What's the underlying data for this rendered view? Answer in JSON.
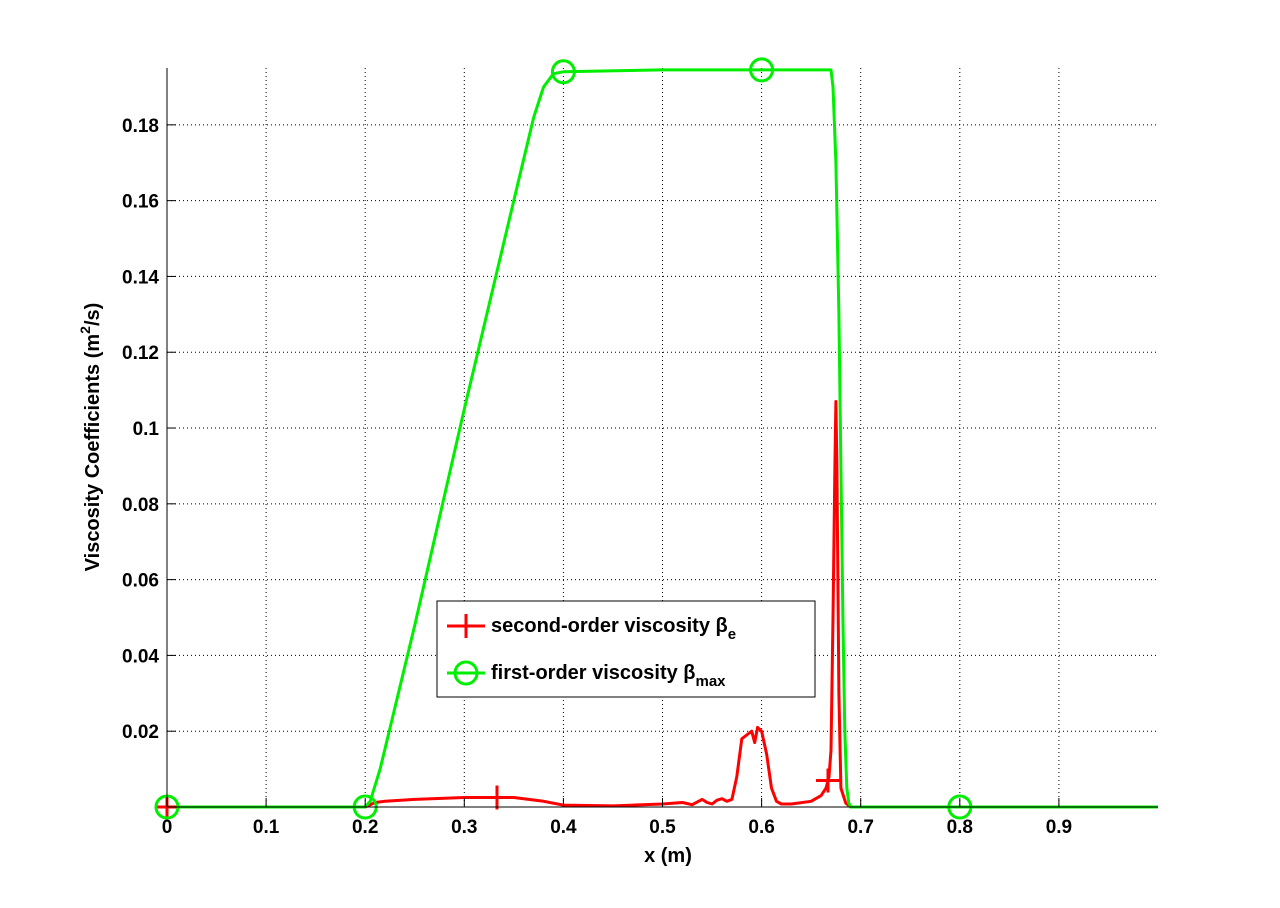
{
  "chart_data": {
    "type": "line",
    "xlabel": "x (m)",
    "ylabel": "Viscosity Coefficients (m",
    "ylabel_sup": "2",
    "ylabel_tail": "/s)",
    "xlim": [
      0,
      1
    ],
    "ylim": [
      0,
      0.195
    ],
    "grid": true,
    "legend_position": "bottom-center",
    "x_ticks": [
      0,
      0.1,
      0.2,
      0.3,
      0.4,
      0.5,
      0.6,
      0.7,
      0.8,
      0.9
    ],
    "x_tick_labels": [
      "0",
      "0.1",
      "0.2",
      "0.3",
      "0.4",
      "0.5",
      "0.6",
      "0.7",
      "0.8",
      "0.9"
    ],
    "y_ticks": [
      0.02,
      0.04,
      0.06,
      0.08,
      0.1,
      0.12,
      0.14,
      0.16,
      0.18
    ],
    "y_tick_labels": [
      "0.02",
      "0.04",
      "0.06",
      "0.08",
      "0.1",
      "0.12",
      "0.14",
      "0.16",
      "0.18"
    ],
    "series": [
      {
        "legend_main": "second-order viscosity β",
        "legend_sub": "e",
        "color": "#ff0000",
        "marker": "plus",
        "markers_x": [
          0,
          0.333,
          0.667
        ],
        "x": [
          0,
          0.2,
          0.21,
          0.22,
          0.25,
          0.3,
          0.35,
          0.38,
          0.4,
          0.45,
          0.5,
          0.52,
          0.53,
          0.54,
          0.545,
          0.55,
          0.555,
          0.56,
          0.565,
          0.57,
          0.575,
          0.58,
          0.585,
          0.59,
          0.593,
          0.596,
          0.6,
          0.605,
          0.61,
          0.615,
          0.62,
          0.63,
          0.65,
          0.66,
          0.665,
          0.668,
          0.67,
          0.672,
          0.674,
          0.675,
          0.676,
          0.678,
          0.68,
          0.685,
          0.69,
          1.0
        ],
        "y": [
          0,
          0,
          0.0012,
          0.0015,
          0.002,
          0.0025,
          0.0025,
          0.0015,
          0.0005,
          0.0003,
          0.0008,
          0.0012,
          0.0006,
          0.002,
          0.0012,
          0.0008,
          0.0018,
          0.0022,
          0.0015,
          0.002,
          0.008,
          0.018,
          0.019,
          0.02,
          0.017,
          0.021,
          0.02,
          0.014,
          0.005,
          0.0015,
          0.0008,
          0.0008,
          0.0015,
          0.003,
          0.005,
          0.008,
          0.015,
          0.05,
          0.09,
          0.107,
          0.09,
          0.03,
          0.005,
          0.001,
          0,
          0
        ]
      },
      {
        "legend_main": "first-order viscosity β",
        "legend_sub": "max",
        "color": "#00ee00",
        "marker": "circle",
        "markers_x": [
          0,
          0.2,
          0.4,
          0.6,
          0.8
        ],
        "x": [
          0,
          0.2,
          0.205,
          0.215,
          0.25,
          0.3,
          0.35,
          0.37,
          0.38,
          0.39,
          0.4,
          0.5,
          0.6,
          0.67,
          0.672,
          0.675,
          0.678,
          0.68,
          0.682,
          0.684,
          0.686,
          0.688,
          0.69,
          1.0
        ],
        "y": [
          0,
          0,
          0.0015,
          0.01,
          0.048,
          0.105,
          0.16,
          0.182,
          0.19,
          0.1935,
          0.194,
          0.1945,
          0.1945,
          0.1945,
          0.19,
          0.17,
          0.13,
          0.09,
          0.05,
          0.02,
          0.005,
          0.001,
          0,
          0
        ]
      }
    ]
  }
}
